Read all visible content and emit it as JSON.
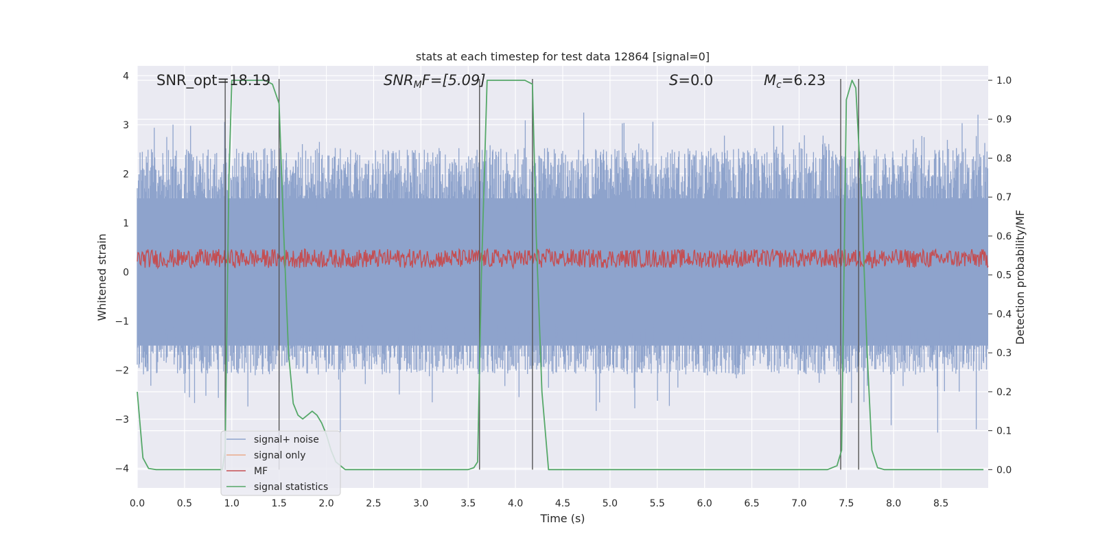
{
  "chart_data": {
    "type": "line",
    "title": "stats at each timestep for test data 12864 [signal=0]",
    "xlabel": "Time (s)",
    "ylabel": "Whitened strain",
    "ylabel_right": "Detection probability/MF",
    "xlim": [
      0.0,
      9.0
    ],
    "ylim": [
      -4.4,
      4.2
    ],
    "ylim_right": [
      -0.047,
      1.037
    ],
    "x_ticks": [
      "0.0",
      "0.5",
      "1.0",
      "1.5",
      "2.0",
      "2.5",
      "3.0",
      "3.5",
      "4.0",
      "4.5",
      "5.0",
      "5.5",
      "6.0",
      "6.5",
      "7.0",
      "7.5",
      "8.0",
      "8.5"
    ],
    "y_ticks": [
      "4",
      "3",
      "2",
      "1",
      "0",
      "−1",
      "−2",
      "−3",
      "−4"
    ],
    "y_ticks_right": [
      "1.0",
      "0.9",
      "0.8",
      "0.7",
      "0.6",
      "0.5",
      "0.4",
      "0.3",
      "0.2",
      "0.1",
      "0.0"
    ],
    "grid": true,
    "legend_position": "lower-left",
    "annotations": {
      "snr_opt": "SNR_opt=18.19",
      "snr_mf_base": "SNR",
      "snr_mf_sub": "M",
      "snr_mf_rest": "F=[5.09]",
      "s_base": "S",
      "s_rest": "=0.0",
      "mc_base": "M",
      "mc_sub": "c",
      "mc_rest": "=6.23"
    },
    "series": [
      {
        "name": "signal+ noise",
        "color": "#8ea3cc",
        "envelope_upper": 2.3,
        "envelope_lower": -1.9,
        "core": 1.5
      },
      {
        "name": "signal only",
        "color": "#eaa98a"
      },
      {
        "name": "MF",
        "color": "#c44e52",
        "mean": 0.25,
        "band": [
          0.0,
          0.55
        ]
      },
      {
        "name": "signal statistics",
        "color": "#55a868",
        "x": [
          0.0,
          0.06,
          0.12,
          0.2,
          0.9,
          0.93,
          0.97,
          1.0,
          1.35,
          1.43,
          1.5,
          1.55,
          1.6,
          1.65,
          1.7,
          1.75,
          1.8,
          1.85,
          1.9,
          1.95,
          2.0,
          2.05,
          2.1,
          2.2,
          3.5,
          3.56,
          3.6,
          3.64,
          3.7,
          4.1,
          4.18,
          4.22,
          4.28,
          4.35,
          4.45,
          7.3,
          7.4,
          7.45,
          7.5,
          7.56,
          7.6,
          7.66,
          7.72,
          7.77,
          7.83,
          7.9,
          8.95
        ],
        "y": [
          0.2,
          0.03,
          0.003,
          0.0,
          0.0,
          0.05,
          0.75,
          1.0,
          1.0,
          0.99,
          0.94,
          0.6,
          0.3,
          0.17,
          0.14,
          0.13,
          0.14,
          0.15,
          0.14,
          0.12,
          0.09,
          0.05,
          0.02,
          0.0,
          0.0,
          0.005,
          0.02,
          0.5,
          1.0,
          1.0,
          0.99,
          0.6,
          0.2,
          0.0,
          0.0,
          0.0,
          0.01,
          0.05,
          0.95,
          1.0,
          0.98,
          0.7,
          0.3,
          0.05,
          0.005,
          0.0,
          0.0
        ]
      }
    ],
    "vlines": [
      0.93,
      1.5,
      3.62,
      4.18,
      7.44,
      7.63
    ]
  }
}
